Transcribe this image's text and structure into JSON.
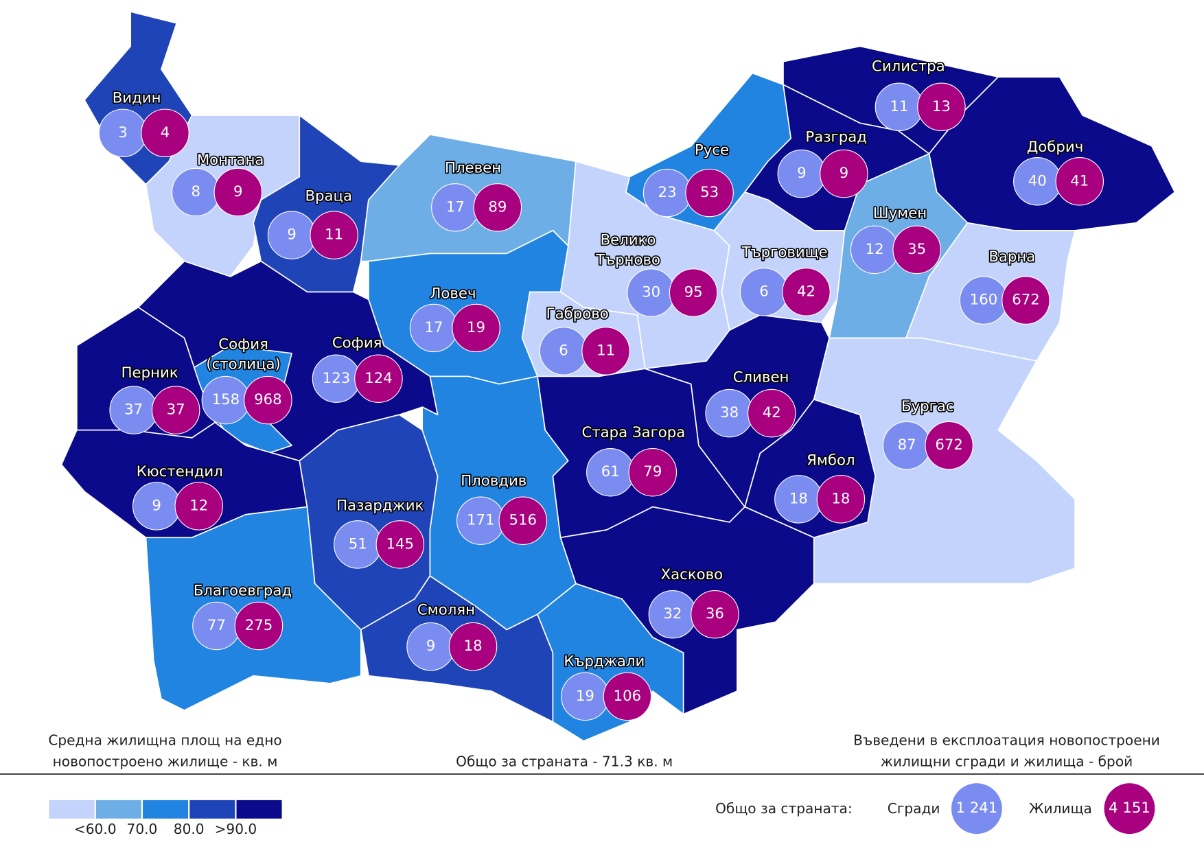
{
  "regions": [
    {
      "name": "Видин",
      "buildings": 3,
      "dwellings": 4,
      "color": "#1f44b8"
    },
    {
      "name": "Монтана",
      "buildings": 8,
      "dwellings": 9,
      "color": "#c3d3fb"
    },
    {
      "name": "Враца",
      "buildings": 9,
      "dwellings": 11,
      "color": "#1f44b8"
    },
    {
      "name": "Плевен",
      "buildings": 17,
      "dwellings": 89,
      "color": "#6eaee6"
    },
    {
      "name": "Русе",
      "buildings": 23,
      "dwellings": 53,
      "color": "#2084e0"
    },
    {
      "name": "Разград",
      "buildings": 9,
      "dwellings": 9,
      "color": "#0a0a8a"
    },
    {
      "name": "Силистра",
      "buildings": 11,
      "dwellings": 13,
      "color": "#0a0a8a"
    },
    {
      "name": "Добрич",
      "buildings": 40,
      "dwellings": 41,
      "color": "#0a0a8a"
    },
    {
      "name": "Шумен",
      "buildings": 12,
      "dwellings": 35,
      "color": "#6eaee6"
    },
    {
      "name": "Варна",
      "buildings": 160,
      "dwellings": 672,
      "color": "#c3d3fb"
    },
    {
      "name": "Търговище",
      "buildings": 6,
      "dwellings": 42,
      "color": "#c3d3fb"
    },
    {
      "name": [
        "Велико",
        "Търново"
      ],
      "buildings": 30,
      "dwellings": 95,
      "color": "#c3d3fb"
    },
    {
      "name": "Ловеч",
      "buildings": 17,
      "dwellings": 19,
      "color": "#2084e0"
    },
    {
      "name": "Габрово",
      "buildings": 6,
      "dwellings": 11,
      "color": "#c3d3fb"
    },
    {
      "name": "София",
      "buildings": 123,
      "dwellings": 124,
      "color": "#0a0a8a"
    },
    {
      "name": [
        "София",
        "(столица)"
      ],
      "buildings": 158,
      "dwellings": 968,
      "color": "#2084e0"
    },
    {
      "name": "Перник",
      "buildings": 37,
      "dwellings": 37,
      "color": "#0a0a8a"
    },
    {
      "name": "Кюстендил",
      "buildings": 9,
      "dwellings": 12,
      "color": "#0a0a8a"
    },
    {
      "name": "Пазарджик",
      "buildings": 51,
      "dwellings": 145,
      "color": "#1f44b8"
    },
    {
      "name": "Пловдив",
      "buildings": 171,
      "dwellings": 516,
      "color": "#2084e0"
    },
    {
      "name": "Стара Загора",
      "buildings": 61,
      "dwellings": 79,
      "color": "#0a0a8a"
    },
    {
      "name": "Сливен",
      "buildings": 38,
      "dwellings": 42,
      "color": "#0a0a8a"
    },
    {
      "name": "Ямбол",
      "buildings": 18,
      "dwellings": 18,
      "color": "#0a0a8a"
    },
    {
      "name": "Бургас",
      "buildings": 87,
      "dwellings": 672,
      "color": "#c3d3fb"
    },
    {
      "name": "Хасково",
      "buildings": 32,
      "dwellings": 36,
      "color": "#0a0a8a"
    },
    {
      "name": "Смолян",
      "buildings": 9,
      "dwellings": 18,
      "color": "#1f44b8"
    },
    {
      "name": "Кърджали",
      "buildings": 19,
      "dwellings": 106,
      "color": "#2084e0"
    },
    {
      "name": "Благоевград",
      "buildings": 77,
      "dwellings": 275,
      "color": "#2084e0"
    }
  ],
  "bubble_colors": {
    "buildings": "#7b8cf0",
    "dwellings": "#a8007f"
  },
  "legend": {
    "title": [
      "Средна жилищна площ на едно",
      "новопостроено жилище - кв. м"
    ],
    "colors": [
      "#c3d3fb",
      "#6eaee6",
      "#2084e0",
      "#1f44b8",
      "#0a0a8a"
    ],
    "labels": [
      "<60.0",
      "70.0",
      "80.0",
      ">90.0"
    ]
  },
  "country_average": "Общо за страната - 71.3 кв. м",
  "totals": {
    "title": [
      "Въведени в експлоатация новопостроени",
      "жилищни сгради и жилища - брой"
    ],
    "label": "Общо за страната:",
    "buildings_label": "Сгради",
    "buildings": {
      "value": 1241,
      "label": "1 241"
    },
    "dwellings_label": "Жилища",
    "dwellings": {
      "value": 4151,
      "label": "4 151"
    }
  }
}
